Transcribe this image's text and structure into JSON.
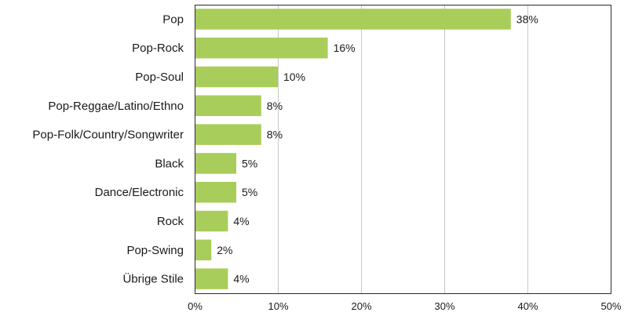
{
  "chart_data": {
    "type": "bar",
    "orientation": "horizontal",
    "title": "",
    "xlabel": "",
    "ylabel": "",
    "categories": [
      "Pop",
      "Pop-Rock",
      "Pop-Soul",
      "Pop-Reggae/Latino/Ethno",
      "Pop-Folk/Country/Songwriter",
      "Black",
      "Dance/Electronic",
      "Rock",
      "Pop-Swing",
      "Übrige Stile"
    ],
    "values": [
      38,
      16,
      10,
      8,
      8,
      5,
      5,
      4,
      2,
      4
    ],
    "value_labels": [
      "38%",
      "16%",
      "10%",
      "8%",
      "8%",
      "5%",
      "5%",
      "4%",
      "2%",
      "4%"
    ],
    "xlim": [
      0,
      50
    ],
    "x_ticks": [
      0,
      10,
      20,
      30,
      40,
      50
    ],
    "x_tick_labels": [
      "0%",
      "10%",
      "20%",
      "30%",
      "40%",
      "50%"
    ],
    "grid": "vertical",
    "legend": "none",
    "bar_color": "#a9cd5a"
  }
}
